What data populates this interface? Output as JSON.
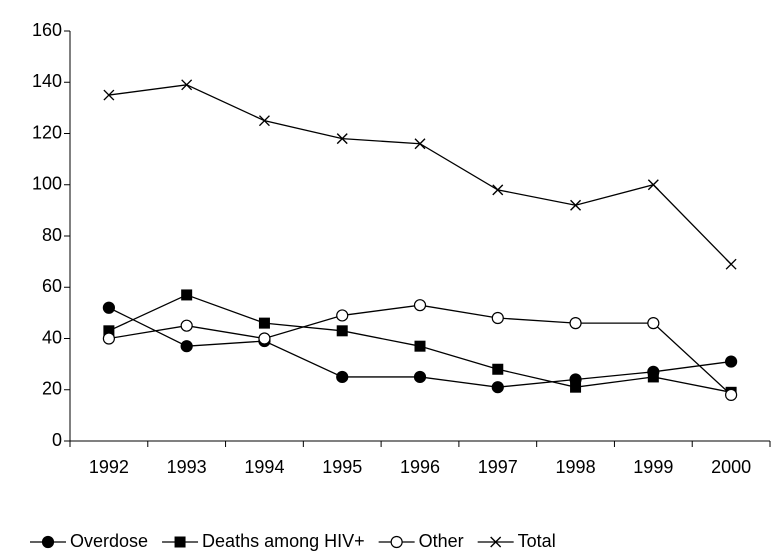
{
  "chart_data": {
    "type": "line",
    "categories": [
      "1992",
      "1993",
      "1994",
      "1995",
      "1996",
      "1997",
      "1998",
      "1999",
      "2000"
    ],
    "series": [
      {
        "name": "Overdose",
        "color": "#000000",
        "marker": "circle",
        "values": [
          52,
          37,
          39,
          25,
          25,
          21,
          24,
          27,
          31
        ]
      },
      {
        "name": "Deaths among HIV+",
        "color": "#000000",
        "marker": "square",
        "values": [
          43,
          57,
          46,
          43,
          37,
          28,
          21,
          25,
          19
        ]
      },
      {
        "name": "Other",
        "color": "#000000",
        "marker": "circle-open",
        "values": [
          40,
          45,
          40,
          49,
          53,
          48,
          46,
          46,
          18
        ]
      },
      {
        "name": "Total",
        "color": "#000000",
        "marker": "x",
        "values": [
          135,
          139,
          125,
          118,
          116,
          98,
          92,
          100,
          69
        ]
      }
    ],
    "ylim": [
      0,
      160
    ],
    "yticks": [
      0,
      20,
      40,
      60,
      80,
      100,
      120,
      140,
      160
    ],
    "grid": false,
    "legend": "bottom"
  }
}
